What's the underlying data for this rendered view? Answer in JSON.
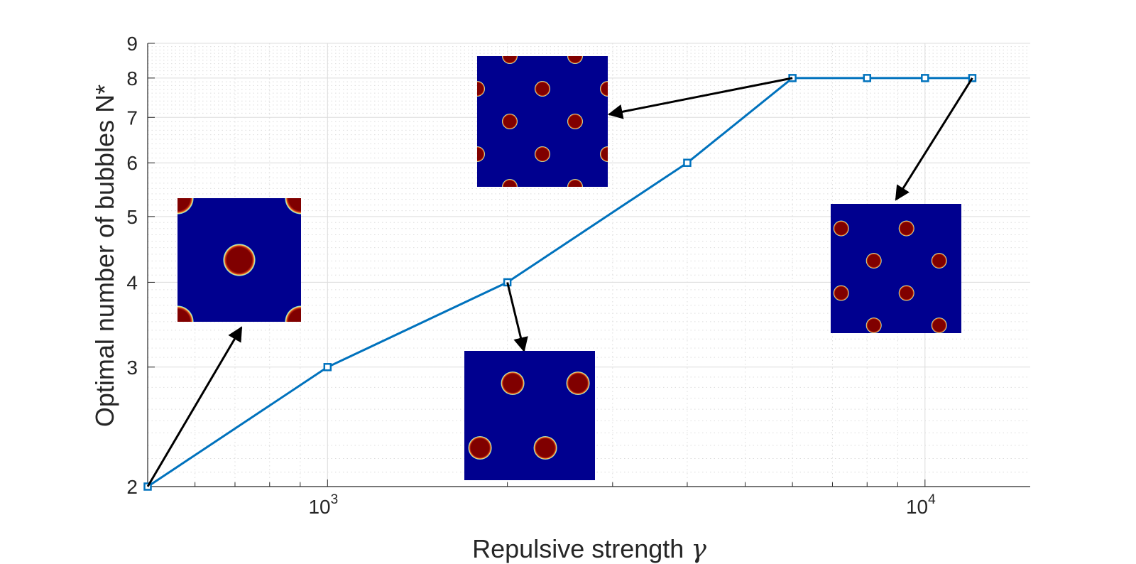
{
  "chart_data": {
    "type": "line",
    "xscale": "log",
    "yscale": "log",
    "xlabel": "Repulsive strength",
    "xlabel_symbol": "γ",
    "ylabel": "Optimal number of bubbles N*",
    "xlim": [
      500,
      15000
    ],
    "ylim": [
      2,
      9
    ],
    "grid": true,
    "minor_grid": true,
    "x_ticks": [
      {
        "base": "10",
        "exp": "3",
        "value": 1000
      },
      {
        "base": "10",
        "exp": "4",
        "value": 10000
      }
    ],
    "y_ticks": [
      {
        "label": "2",
        "value": 2
      },
      {
        "label": "3",
        "value": 3
      },
      {
        "label": "4",
        "value": 4
      },
      {
        "label": "5",
        "value": 5
      },
      {
        "label": "6",
        "value": 6
      },
      {
        "label": "7",
        "value": 7
      },
      {
        "label": "8",
        "value": 8
      },
      {
        "label": "9",
        "value": 9
      }
    ],
    "series": [
      {
        "color": "#0072BD",
        "marker": "square",
        "x": [
          500,
          1000,
          2000,
          4000,
          6000,
          8000,
          10000,
          12000
        ],
        "y": [
          2,
          3,
          4,
          6,
          8,
          8,
          8,
          8
        ]
      }
    ],
    "insets": [
      {
        "bubbles": 2,
        "arrow_from": [
          500,
          2
        ]
      },
      {
        "bubbles": 4,
        "arrow_from": [
          2000,
          4
        ]
      },
      {
        "bubbles": 8,
        "arrow_from": [
          6000,
          8
        ]
      },
      {
        "bubbles": 8,
        "arrow_from": [
          12000,
          8
        ]
      }
    ]
  },
  "colors": {
    "line": "#0072BD",
    "inset_bg": "#00008F",
    "bubble": "#800000",
    "bubble_rim": "#7FFFBF",
    "axis": "#262626",
    "grid": "#dcdcdc"
  }
}
